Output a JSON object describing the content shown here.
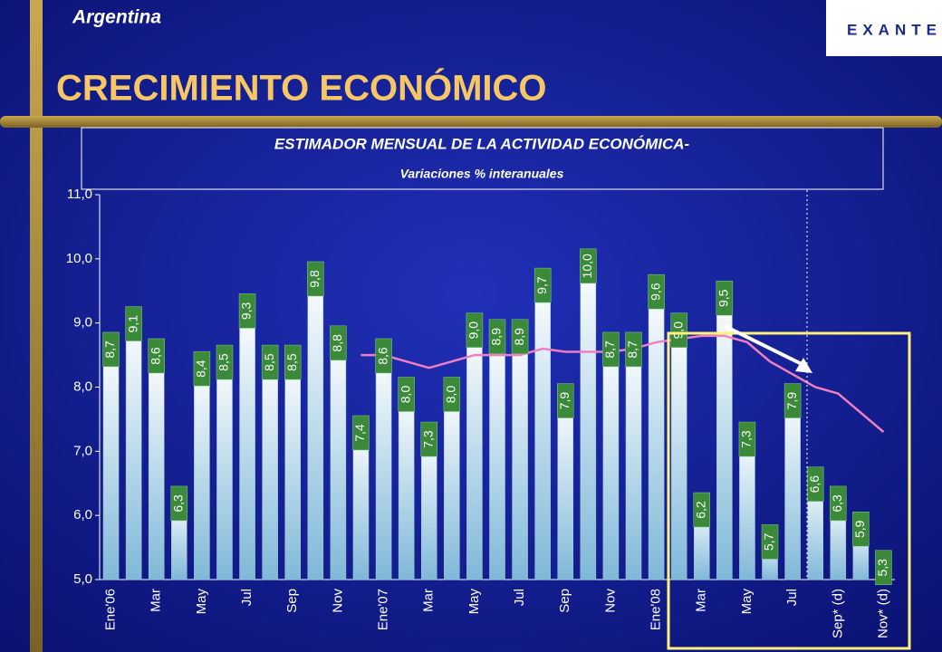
{
  "header": {
    "country": "Argentina",
    "title": "CRECIMIENTO ECONÓMICO",
    "logo": "EXANTE"
  },
  "chart_data": {
    "type": "bar",
    "title": "ESTIMADOR MENSUAL DE LA ACTIVIDAD ECONÓMICA-",
    "subtitle": "Variaciones % interanuales",
    "categories": [
      "Ene'06",
      null,
      "Mar",
      null,
      "May",
      null,
      "Jul",
      null,
      "Sep",
      null,
      "Nov",
      null,
      "Ene'07",
      null,
      "Mar",
      null,
      "May",
      null,
      "Jul",
      null,
      "Sep",
      null,
      "Nov",
      null,
      "Ene'08",
      null,
      "Mar",
      null,
      "May",
      null,
      "Jul",
      null,
      "Sep* (d)",
      null,
      "Nov* (d)"
    ],
    "values": [
      8.7,
      9.1,
      8.6,
      6.3,
      8.4,
      8.5,
      9.3,
      8.5,
      8.5,
      9.8,
      8.8,
      7.4,
      8.6,
      8.0,
      7.3,
      8.0,
      9.0,
      8.9,
      8.9,
      9.7,
      7.9,
      10.0,
      8.7,
      8.7,
      9.6,
      9.0,
      6.2,
      9.5,
      7.3,
      5.7,
      7.9,
      6.6,
      6.3,
      5.9,
      5.3
    ],
    "value_labels": [
      "8,7",
      "9,1",
      "8,6",
      "6,3",
      "8,4",
      "8,5",
      "9,3",
      "8,5",
      "8,5",
      "9,8",
      "8,8",
      "7,4",
      "8,6",
      "8,0",
      "7,3",
      "8,0",
      "9,0",
      "8,9",
      "8,9",
      "9,7",
      "7,9",
      "10,0",
      "8,7",
      "8,7",
      "9,6",
      "9,0",
      "6,2",
      "9,5",
      "7,3",
      "5,7",
      "7,9",
      "6,6",
      "6,3",
      "5,9",
      "5,3"
    ],
    "color": "#bfe4f2",
    "trend": {
      "color": "#f07fc0",
      "values": [
        null,
        null,
        null,
        null,
        null,
        null,
        null,
        null,
        null,
        null,
        null,
        8.5,
        8.5,
        8.4,
        8.3,
        8.4,
        8.5,
        8.5,
        8.5,
        8.6,
        8.55,
        8.55,
        8.55,
        8.6,
        8.7,
        8.75,
        8.8,
        8.8,
        8.7,
        8.4,
        8.2,
        8.0,
        7.9,
        7.6,
        7.3
      ]
    },
    "ylim": [
      5,
      11
    ],
    "yticks": [
      {
        "value": 5,
        "label": "5,0"
      },
      {
        "value": 6,
        "label": "6,0"
      },
      {
        "value": 7,
        "label": "7,0"
      },
      {
        "value": 8,
        "label": "8,0"
      },
      {
        "value": 9,
        "label": "9,0"
      },
      {
        "value": 10,
        "label": "10,0"
      },
      {
        "value": 11,
        "label": "11,0"
      }
    ]
  }
}
